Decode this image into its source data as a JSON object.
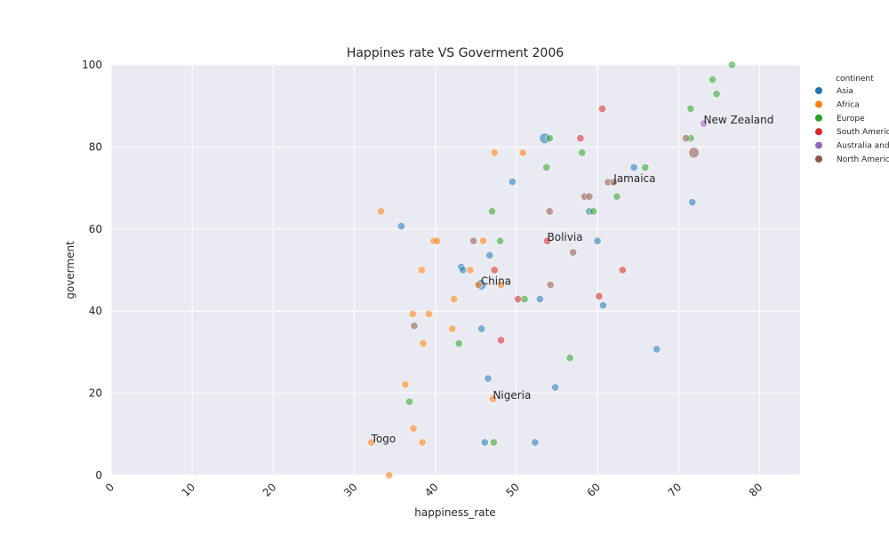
{
  "chart_data": {
    "type": "scatter",
    "title": "Happines rate VS Goverment 2006",
    "xlabel": "happiness_rate",
    "ylabel": "goverment",
    "xlim": [
      0,
      85
    ],
    "ylim": [
      0,
      100
    ],
    "xticks": [
      0,
      10,
      20,
      30,
      40,
      50,
      60,
      70,
      80
    ],
    "yticks": [
      0,
      20,
      40,
      60,
      80,
      100
    ],
    "grid": true,
    "legend_placement": "right",
    "legend": {
      "title": "continent",
      "entries": [
        {
          "name": "Asia",
          "color": "#1f77b4"
        },
        {
          "name": "Africa",
          "color": "#ff7f0e"
        },
        {
          "name": "Europe",
          "color": "#2ca02c"
        },
        {
          "name": "South America",
          "color": "#d62728"
        },
        {
          "name": "Australia and Oceania",
          "color": "#9467bd"
        },
        {
          "name": "North America",
          "color": "#8c564b"
        }
      ]
    },
    "series": [
      {
        "name": "Asia",
        "color": "#1f77b4",
        "points": [
          {
            "x": 53.5,
            "y": 82.1,
            "size": 2
          },
          {
            "x": 49.5,
            "y": 71.5
          },
          {
            "x": 64.5,
            "y": 75
          },
          {
            "x": 71.7,
            "y": 66.5
          },
          {
            "x": 35.8,
            "y": 60.7
          },
          {
            "x": 59.0,
            "y": 64.3
          },
          {
            "x": 60.0,
            "y": 57.1
          },
          {
            "x": 46.7,
            "y": 53.6
          },
          {
            "x": 43.2,
            "y": 50.7
          },
          {
            "x": 43.4,
            "y": 50.0
          },
          {
            "x": 45.6,
            "y": 46.4,
            "size": 2
          },
          {
            "x": 52.9,
            "y": 42.9
          },
          {
            "x": 60.7,
            "y": 41.4
          },
          {
            "x": 45.7,
            "y": 35.7
          },
          {
            "x": 67.3,
            "y": 30.7
          },
          {
            "x": 46.5,
            "y": 23.6
          },
          {
            "x": 54.8,
            "y": 21.4
          },
          {
            "x": 46.1,
            "y": 8.0
          },
          {
            "x": 52.3,
            "y": 8.0
          }
        ]
      },
      {
        "name": "Africa",
        "color": "#ff7f0e",
        "points": [
          {
            "x": 47.3,
            "y": 78.6
          },
          {
            "x": 50.8,
            "y": 78.6
          },
          {
            "x": 33.3,
            "y": 64.3
          },
          {
            "x": 39.8,
            "y": 57.1
          },
          {
            "x": 40.2,
            "y": 57.1
          },
          {
            "x": 45.9,
            "y": 57.1
          },
          {
            "x": 38.3,
            "y": 50.0
          },
          {
            "x": 44.3,
            "y": 50.0
          },
          {
            "x": 45.3,
            "y": 46.4
          },
          {
            "x": 48.1,
            "y": 46.4
          },
          {
            "x": 42.3,
            "y": 42.9
          },
          {
            "x": 37.2,
            "y": 39.3
          },
          {
            "x": 39.2,
            "y": 39.3
          },
          {
            "x": 42.1,
            "y": 35.7
          },
          {
            "x": 38.5,
            "y": 32.1
          },
          {
            "x": 36.3,
            "y": 22.1
          },
          {
            "x": 47.1,
            "y": 18.6
          },
          {
            "x": 37.3,
            "y": 11.4
          },
          {
            "x": 32.1,
            "y": 8.0
          },
          {
            "x": 38.4,
            "y": 8.0
          },
          {
            "x": 34.3,
            "y": 0.0
          }
        ]
      },
      {
        "name": "Europe",
        "color": "#2ca02c",
        "points": [
          {
            "x": 76.6,
            "y": 100
          },
          {
            "x": 74.2,
            "y": 96.4
          },
          {
            "x": 74.7,
            "y": 92.9
          },
          {
            "x": 71.5,
            "y": 89.3
          },
          {
            "x": 54.1,
            "y": 82.1
          },
          {
            "x": 71.5,
            "y": 82.1
          },
          {
            "x": 58.1,
            "y": 78.6
          },
          {
            "x": 53.7,
            "y": 75.0
          },
          {
            "x": 65.9,
            "y": 75.0
          },
          {
            "x": 62.4,
            "y": 67.9
          },
          {
            "x": 47.0,
            "y": 64.3
          },
          {
            "x": 59.5,
            "y": 64.3
          },
          {
            "x": 48.0,
            "y": 57.1
          },
          {
            "x": 51.0,
            "y": 42.9
          },
          {
            "x": 42.9,
            "y": 32.1
          },
          {
            "x": 56.6,
            "y": 28.6
          },
          {
            "x": 36.8,
            "y": 17.9
          },
          {
            "x": 47.2,
            "y": 8.0
          }
        ]
      },
      {
        "name": "South America",
        "color": "#d62728",
        "points": [
          {
            "x": 60.6,
            "y": 89.3
          },
          {
            "x": 57.9,
            "y": 82.1
          },
          {
            "x": 53.8,
            "y": 57.1
          },
          {
            "x": 47.3,
            "y": 50.0
          },
          {
            "x": 63.1,
            "y": 50.0
          },
          {
            "x": 60.2,
            "y": 43.6
          },
          {
            "x": 50.2,
            "y": 42.9
          },
          {
            "x": 48.1,
            "y": 32.9
          }
        ]
      },
      {
        "name": "Australia and Oceania",
        "color": "#9467bd",
        "points": [
          {
            "x": 73.1,
            "y": 85.7
          }
        ]
      },
      {
        "name": "North America",
        "color": "#8c564b",
        "points": [
          {
            "x": 70.9,
            "y": 82.1
          },
          {
            "x": 71.9,
            "y": 78.6,
            "size": 2
          },
          {
            "x": 61.3,
            "y": 71.4
          },
          {
            "x": 62.0,
            "y": 71.4
          },
          {
            "x": 58.4,
            "y": 67.9
          },
          {
            "x": 59.0,
            "y": 67.9
          },
          {
            "x": 54.1,
            "y": 64.3
          },
          {
            "x": 44.7,
            "y": 57.1
          },
          {
            "x": 57.0,
            "y": 54.3
          },
          {
            "x": 54.2,
            "y": 46.4
          },
          {
            "x": 37.4,
            "y": 36.4
          }
        ]
      }
    ],
    "annotations": [
      {
        "text": "New Zealand",
        "x": 73.1,
        "y": 85.7
      },
      {
        "text": "Jamaica",
        "x": 62.0,
        "y": 71.4
      },
      {
        "text": "Bolivia",
        "x": 53.8,
        "y": 57.1
      },
      {
        "text": "China",
        "x": 45.6,
        "y": 46.4
      },
      {
        "text": "Nigeria",
        "x": 47.1,
        "y": 18.6
      },
      {
        "text": "Togo",
        "x": 32.1,
        "y": 8.0
      }
    ]
  }
}
